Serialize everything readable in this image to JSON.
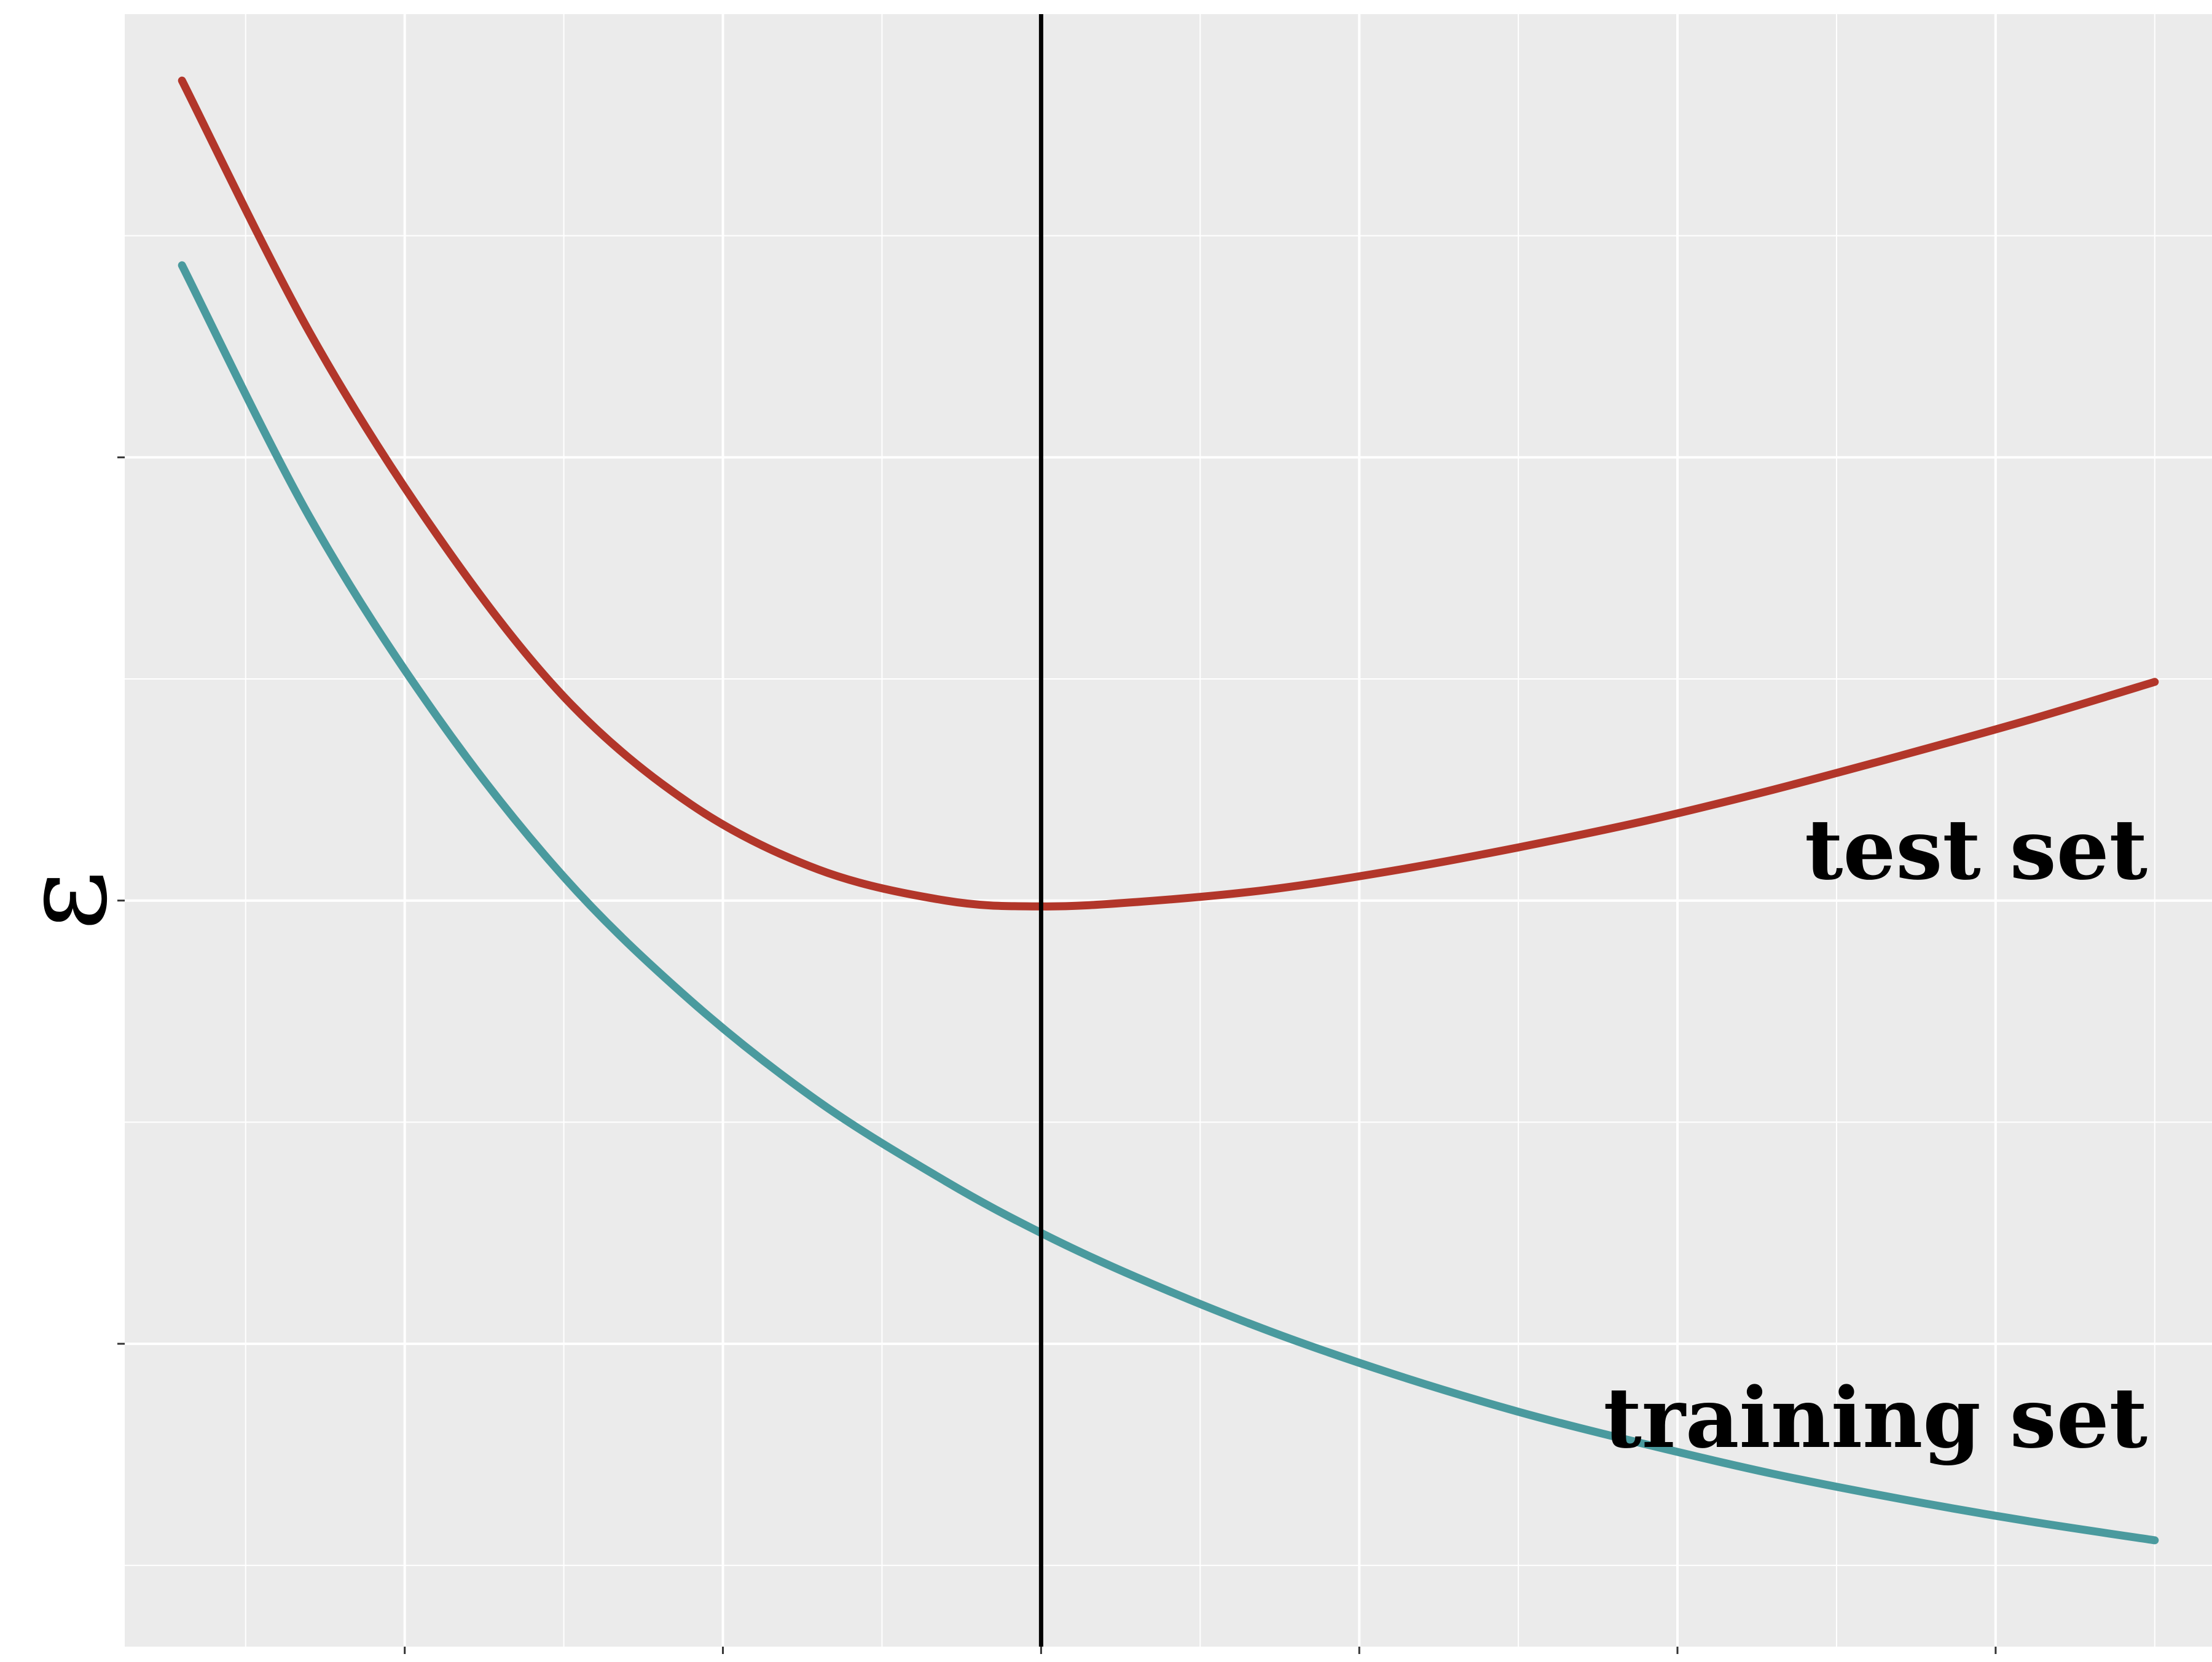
{
  "chart_data": {
    "type": "line",
    "title": "",
    "xlabel": "",
    "ylabel": "ε",
    "xlim": [
      0.62,
      7.18
    ],
    "ylim": [
      0.095,
      1.2
    ],
    "grid": true,
    "x_ticks": [
      1.5,
      2.5,
      3.5,
      4.5,
      5.5,
      6.5
    ],
    "x_minor_grid": [
      1.0,
      2.0,
      3.0,
      4.0,
      5.0,
      6.0,
      7.0
    ],
    "y_ticks": [
      0.3,
      0.6,
      0.9
    ],
    "y_minor_grid": [
      0.15,
      0.45,
      0.75,
      1.05
    ],
    "vline_x": 3.5,
    "series": [
      {
        "name": "test set",
        "color": "#b2362a",
        "x": [
          0.8,
          1.2,
          1.6,
          2.0,
          2.4,
          2.8,
          3.2,
          3.5,
          3.8,
          4.2,
          4.6,
          5.0,
          5.4,
          5.8,
          6.2,
          6.6,
          7.0
        ],
        "y": [
          1.155,
          0.985,
          0.848,
          0.738,
          0.665,
          0.621,
          0.6,
          0.596,
          0.599,
          0.607,
          0.62,
          0.636,
          0.654,
          0.675,
          0.698,
          0.722,
          0.748
        ]
      },
      {
        "name": "training set",
        "color": "#4a9a9e",
        "x": [
          0.8,
          1.2,
          1.6,
          2.0,
          2.4,
          2.8,
          3.2,
          3.5,
          3.8,
          4.2,
          4.6,
          5.0,
          5.4,
          5.8,
          6.2,
          6.6,
          7.0
        ],
        "y": [
          1.03,
          0.86,
          0.725,
          0.616,
          0.532,
          0.464,
          0.41,
          0.375,
          0.345,
          0.31,
          0.28,
          0.254,
          0.232,
          0.212,
          0.195,
          0.18,
          0.167
        ]
      }
    ]
  }
}
